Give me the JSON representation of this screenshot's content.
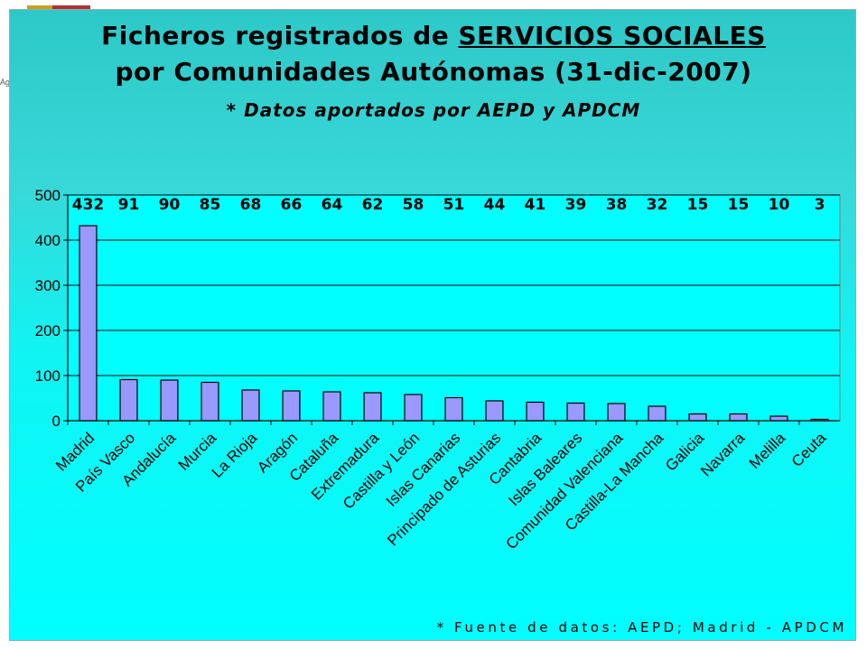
{
  "header": {
    "title_line1_prefix": "Ficheros registrados de ",
    "title_line1_emph": "SERVICIOS SOCIALES",
    "title_line2": "por Comunidades Autónomas (31-dic-2007)",
    "subtitle": "* Datos aportados por AEPD y APDCM"
  },
  "footnote": "* Fuente de datos: AEPD; Madrid - APDCM",
  "logo_text": "Ag",
  "chart_data": {
    "type": "bar",
    "title": "Ficheros registrados de SERVICIOS SOCIALES por Comunidades Autónomas (31-dic-2007)",
    "subtitle": "* Datos aportados por AEPD y APDCM",
    "categories": [
      "Madrid",
      "País Vasco",
      "Andalucía",
      "Murcia",
      "La Rioja",
      "Aragón",
      "Cataluña",
      "Extremadura",
      "Castilla y León",
      "Islas Canarias",
      "Principado de Asturias",
      "Cantabria",
      "Islas Baleares",
      "Comunidad Valenciana",
      "Castilla-La Mancha",
      "Galicia",
      "Navarra",
      "Melilla",
      "Ceuta"
    ],
    "values": [
      432,
      91,
      90,
      85,
      68,
      66,
      64,
      62,
      58,
      51,
      44,
      41,
      39,
      38,
      32,
      15,
      15,
      10,
      3
    ],
    "xlabel": "",
    "ylabel": "",
    "ylim": [
      0,
      500
    ],
    "yticks": [
      0,
      100,
      200,
      300,
      400,
      500
    ],
    "grid": true,
    "legend": "none",
    "data_labels": true,
    "colors": {
      "bar_fill": "#9999ff",
      "bar_stroke": "#000000",
      "plot_bg": "#00ffff",
      "gridline": "#000000"
    }
  }
}
